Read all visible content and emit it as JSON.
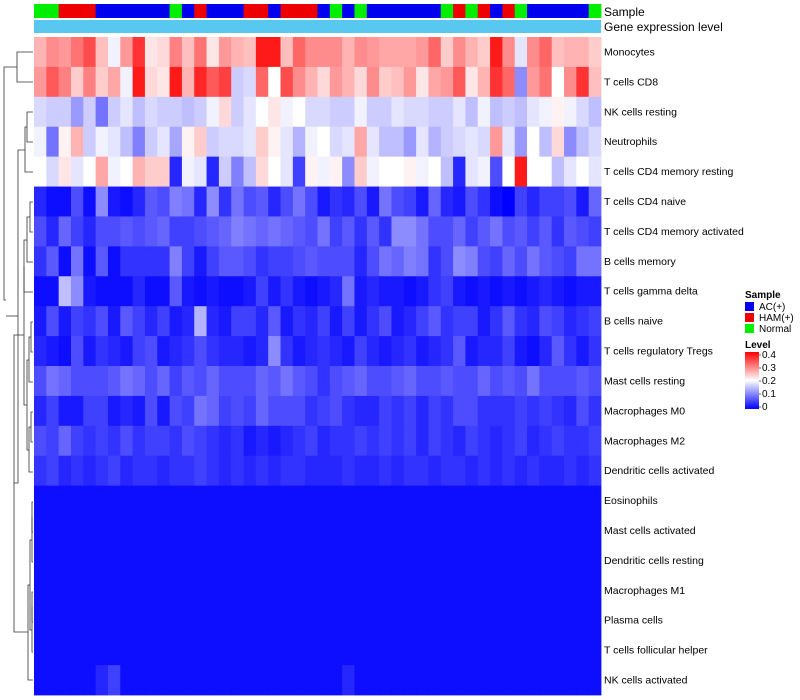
{
  "chart_data": {
    "type": "heatmap",
    "annotation_labels": [
      "Sample",
      "Gene expression level"
    ],
    "row_labels": [
      "Monocytes",
      "T cells CD8",
      "NK cells resting",
      "Neutrophils",
      "T cells CD4 memory resting",
      "T cells CD4 naive",
      "T cells CD4 memory activated",
      "B cells memory",
      "T cells gamma delta",
      "B cells naive",
      "T cells regulatory  Tregs",
      "Mast cells resting",
      "Macrophages M0",
      "Macrophages M2",
      "Dendritic cells activated",
      "Eosinophils",
      "Mast cells activated",
      "Dendritic cells resting",
      "Macrophages M1",
      "Plasma cells",
      "T cells follicular helper",
      "NK cells activated"
    ],
    "samples": [
      "N",
      "N",
      "H",
      "H",
      "H",
      "A",
      "A",
      "A",
      "A",
      "A",
      "A",
      "N",
      "A",
      "H",
      "A",
      "A",
      "A",
      "H",
      "H",
      "A",
      "H",
      "H",
      "H",
      "A",
      "N",
      "A",
      "N",
      "A",
      "A",
      "A",
      "A",
      "A",
      "A",
      "N",
      "H",
      "N",
      "H",
      "A",
      "H",
      "N",
      "A",
      "A",
      "A",
      "A",
      "A",
      "N"
    ],
    "sample_legend": {
      "title": "Sample",
      "items": [
        {
          "key": "A",
          "label": "AC(+)",
          "color": "#0000EE"
        },
        {
          "key": "H",
          "label": "HAM(+)",
          "color": "#EE0000"
        },
        {
          "key": "N",
          "label": "Normal",
          "color": "#00EE00"
        }
      ]
    },
    "level_legend": {
      "title": "Level",
      "ticks": [
        "0.4",
        "0.3",
        "0.2",
        "0.1",
        "0"
      ],
      "min": 0,
      "max": 0.4
    },
    "color_scale": {
      "low": "#0000FF",
      "mid": "#FFFFFF",
      "high": "#FF0000",
      "mid_value": 0.2
    },
    "values": [
      [
        0.26,
        0.29,
        0.28,
        0.31,
        0.34,
        0.25,
        0.19,
        0.28,
        0.36,
        0.22,
        0.23,
        0.3,
        0.25,
        0.31,
        0.22,
        0.28,
        0.26,
        0.25,
        0.38,
        0.38,
        0.25,
        0.32,
        0.29,
        0.29,
        0.29,
        0.26,
        0.29,
        0.28,
        0.27,
        0.27,
        0.27,
        0.28,
        0.32,
        0.24,
        0.29,
        0.26,
        0.24,
        0.38,
        0.29,
        0.18,
        0.29,
        0.32,
        0.25,
        0.26,
        0.26,
        0.24
      ],
      [
        0.28,
        0.33,
        0.3,
        0.24,
        0.3,
        0.24,
        0.27,
        0.19,
        0.38,
        0.23,
        0.22,
        0.38,
        0.26,
        0.37,
        0.33,
        0.35,
        0.16,
        0.17,
        0.32,
        0.2,
        0.34,
        0.29,
        0.26,
        0.23,
        0.28,
        0.26,
        0.23,
        0.29,
        0.24,
        0.25,
        0.28,
        0.22,
        0.27,
        0.28,
        0.33,
        0.22,
        0.26,
        0.36,
        0.32,
        0.11,
        0.28,
        0.31,
        0.2,
        0.29,
        0.36,
        0.25
      ],
      [
        0.17,
        0.16,
        0.16,
        0.12,
        0.16,
        0.09,
        0.16,
        0.18,
        0.15,
        0.17,
        0.16,
        0.16,
        0.15,
        0.16,
        0.19,
        0.23,
        0.16,
        0.18,
        0.2,
        0.22,
        0.19,
        0.2,
        0.17,
        0.17,
        0.16,
        0.16,
        0.19,
        0.16,
        0.16,
        0.18,
        0.17,
        0.17,
        0.16,
        0.16,
        0.18,
        0.15,
        0.19,
        0.15,
        0.16,
        0.15,
        0.18,
        0.19,
        0.21,
        0.19,
        0.17,
        0.15
      ],
      [
        0.19,
        0.09,
        0.21,
        0.26,
        0.16,
        0.19,
        0.18,
        0.15,
        0.1,
        0.16,
        0.18,
        0.13,
        0.21,
        0.24,
        0.16,
        0.17,
        0.17,
        0.18,
        0.24,
        0.21,
        0.18,
        0.14,
        0.19,
        0.2,
        0.17,
        0.18,
        0.27,
        0.18,
        0.15,
        0.15,
        0.12,
        0.18,
        0.14,
        0.16,
        0.17,
        0.18,
        0.17,
        0.28,
        0.18,
        0.12,
        0.2,
        0.15,
        0.23,
        0.11,
        0.15,
        0.17
      ],
      [
        0.2,
        0.17,
        0.22,
        0.18,
        0.2,
        0.27,
        0.19,
        0.2,
        0.26,
        0.24,
        0.24,
        0.03,
        0.19,
        0.18,
        0.03,
        0.16,
        0.1,
        0.15,
        0.23,
        0.2,
        0.18,
        0.05,
        0.21,
        0.19,
        0.21,
        0.11,
        0.24,
        0.19,
        0.2,
        0.2,
        0.21,
        0.19,
        0.2,
        0.15,
        0.03,
        0.18,
        0.19,
        0.06,
        0.2,
        0.38,
        0.2,
        0.2,
        0.15,
        0.18,
        0.2,
        0.18
      ],
      [
        0.03,
        0.01,
        0.01,
        0.06,
        0.01,
        0.11,
        0.02,
        0.01,
        0.03,
        0.07,
        0.06,
        0.1,
        0.09,
        0.03,
        0.11,
        0.04,
        0.09,
        0.06,
        0.07,
        0.03,
        0.06,
        0.09,
        0.06,
        0.02,
        0.04,
        0.03,
        0.06,
        0.02,
        0.09,
        0.06,
        0.05,
        0.02,
        0.08,
        0.03,
        0.02,
        0.06,
        0.04,
        0.01,
        0.0,
        0.05,
        0.03,
        0.05,
        0.05,
        0.06,
        0.02,
        0.08
      ],
      [
        0.06,
        0.03,
        0.08,
        0.05,
        0.03,
        0.06,
        0.06,
        0.07,
        0.06,
        0.07,
        0.08,
        0.05,
        0.05,
        0.06,
        0.07,
        0.08,
        0.1,
        0.09,
        0.08,
        0.09,
        0.08,
        0.07,
        0.06,
        0.09,
        0.05,
        0.07,
        0.04,
        0.07,
        0.04,
        0.11,
        0.11,
        0.09,
        0.06,
        0.06,
        0.08,
        0.05,
        0.07,
        0.09,
        0.06,
        0.07,
        0.05,
        0.07,
        0.04,
        0.07,
        0.06,
        0.05
      ],
      [
        0.04,
        0.07,
        0.01,
        0.09,
        0.01,
        0.07,
        0.01,
        0.04,
        0.04,
        0.04,
        0.04,
        0.1,
        0.05,
        0.02,
        0.05,
        0.07,
        0.07,
        0.06,
        0.04,
        0.05,
        0.05,
        0.06,
        0.07,
        0.06,
        0.06,
        0.06,
        0.03,
        0.06,
        0.09,
        0.08,
        0.1,
        0.09,
        0.04,
        0.06,
        0.11,
        0.1,
        0.06,
        0.05,
        0.08,
        0.06,
        0.09,
        0.07,
        0.06,
        0.05,
        0.09,
        0.09
      ],
      [
        0.01,
        0.01,
        0.15,
        0.11,
        0.02,
        0.01,
        0.01,
        0.01,
        0.03,
        0.01,
        0.01,
        0.07,
        0.02,
        0.01,
        0.02,
        0.01,
        0.01,
        0.02,
        0.05,
        0.02,
        0.04,
        0.02,
        0.01,
        0.02,
        0.03,
        0.09,
        0.02,
        0.03,
        0.02,
        0.02,
        0.01,
        0.02,
        0.04,
        0.05,
        0.02,
        0.01,
        0.02,
        0.01,
        0.02,
        0.01,
        0.02,
        0.03,
        0.02,
        0.01,
        0.02,
        0.02
      ],
      [
        0.02,
        0.06,
        0.02,
        0.05,
        0.04,
        0.06,
        0.02,
        0.07,
        0.05,
        0.03,
        0.05,
        0.02,
        0.03,
        0.14,
        0.03,
        0.02,
        0.05,
        0.05,
        0.03,
        0.07,
        0.02,
        0.04,
        0.03,
        0.05,
        0.02,
        0.05,
        0.02,
        0.04,
        0.06,
        0.02,
        0.03,
        0.05,
        0.07,
        0.04,
        0.05,
        0.05,
        0.02,
        0.04,
        0.07,
        0.04,
        0.03,
        0.06,
        0.05,
        0.03,
        0.04,
        0.05
      ],
      [
        0.03,
        0.02,
        0.01,
        0.06,
        0.02,
        0.04,
        0.03,
        0.02,
        0.05,
        0.06,
        0.02,
        0.03,
        0.04,
        0.06,
        0.04,
        0.03,
        0.03,
        0.02,
        0.03,
        0.11,
        0.04,
        0.02,
        0.03,
        0.04,
        0.03,
        0.02,
        0.05,
        0.03,
        0.02,
        0.03,
        0.04,
        0.02,
        0.03,
        0.04,
        0.07,
        0.02,
        0.03,
        0.03,
        0.05,
        0.02,
        0.01,
        0.03,
        0.07,
        0.04,
        0.02,
        0.04
      ],
      [
        0.06,
        0.09,
        0.08,
        0.06,
        0.06,
        0.06,
        0.07,
        0.09,
        0.08,
        0.06,
        0.08,
        0.05,
        0.07,
        0.06,
        0.08,
        0.06,
        0.06,
        0.06,
        0.08,
        0.07,
        0.09,
        0.07,
        0.06,
        0.04,
        0.06,
        0.07,
        0.08,
        0.06,
        0.06,
        0.07,
        0.08,
        0.06,
        0.06,
        0.07,
        0.06,
        0.06,
        0.08,
        0.06,
        0.07,
        0.06,
        0.09,
        0.06,
        0.06,
        0.06,
        0.07,
        0.06
      ],
      [
        0.03,
        0.05,
        0.02,
        0.02,
        0.05,
        0.05,
        0.02,
        0.03,
        0.02,
        0.06,
        0.02,
        0.06,
        0.05,
        0.09,
        0.08,
        0.05,
        0.06,
        0.05,
        0.08,
        0.06,
        0.06,
        0.06,
        0.04,
        0.05,
        0.06,
        0.04,
        0.03,
        0.03,
        0.05,
        0.04,
        0.05,
        0.03,
        0.05,
        0.04,
        0.06,
        0.06,
        0.04,
        0.04,
        0.04,
        0.05,
        0.04,
        0.05,
        0.04,
        0.03,
        0.06,
        0.04
      ],
      [
        0.06,
        0.05,
        0.08,
        0.05,
        0.04,
        0.05,
        0.04,
        0.06,
        0.04,
        0.05,
        0.05,
        0.04,
        0.06,
        0.05,
        0.04,
        0.03,
        0.04,
        0.02,
        0.03,
        0.02,
        0.03,
        0.04,
        0.05,
        0.03,
        0.04,
        0.04,
        0.05,
        0.04,
        0.05,
        0.04,
        0.05,
        0.03,
        0.05,
        0.04,
        0.03,
        0.05,
        0.04,
        0.03,
        0.04,
        0.05,
        0.03,
        0.04,
        0.05,
        0.04,
        0.04,
        0.05
      ],
      [
        0.04,
        0.05,
        0.03,
        0.04,
        0.03,
        0.04,
        0.05,
        0.03,
        0.04,
        0.04,
        0.03,
        0.04,
        0.04,
        0.05,
        0.04,
        0.03,
        0.04,
        0.03,
        0.04,
        0.03,
        0.04,
        0.04,
        0.03,
        0.03,
        0.03,
        0.04,
        0.03,
        0.03,
        0.04,
        0.03,
        0.04,
        0.04,
        0.03,
        0.04,
        0.04,
        0.03,
        0.04,
        0.03,
        0.04,
        0.03,
        0.04,
        0.03,
        0.03,
        0.04,
        0.03,
        0.04
      ],
      [
        0.01,
        0.01,
        0.01,
        0.01,
        0.01,
        0.01,
        0.01,
        0.01,
        0.01,
        0.01,
        0.01,
        0.01,
        0.01,
        0.01,
        0.01,
        0.01,
        0.01,
        0.01,
        0.01,
        0.01,
        0.01,
        0.01,
        0.01,
        0.01,
        0.01,
        0.01,
        0.01,
        0.01,
        0.01,
        0.01,
        0.01,
        0.01,
        0.01,
        0.01,
        0.01,
        0.01,
        0.01,
        0.01,
        0.01,
        0.01,
        0.01,
        0.01,
        0.01,
        0.01,
        0.01,
        0.01
      ],
      [
        0.01,
        0.01,
        0.01,
        0.01,
        0.01,
        0.01,
        0.01,
        0.01,
        0.01,
        0.01,
        0.01,
        0.01,
        0.01,
        0.01,
        0.01,
        0.01,
        0.01,
        0.01,
        0.01,
        0.01,
        0.01,
        0.01,
        0.01,
        0.01,
        0.01,
        0.01,
        0.01,
        0.01,
        0.01,
        0.01,
        0.01,
        0.01,
        0.01,
        0.01,
        0.01,
        0.01,
        0.01,
        0.01,
        0.01,
        0.01,
        0.01,
        0.01,
        0.01,
        0.01,
        0.01,
        0.01
      ],
      [
        0.01,
        0.01,
        0.01,
        0.01,
        0.01,
        0.01,
        0.01,
        0.01,
        0.01,
        0.01,
        0.01,
        0.01,
        0.01,
        0.01,
        0.01,
        0.01,
        0.01,
        0.01,
        0.01,
        0.01,
        0.01,
        0.01,
        0.01,
        0.01,
        0.01,
        0.01,
        0.01,
        0.01,
        0.01,
        0.01,
        0.01,
        0.01,
        0.01,
        0.01,
        0.01,
        0.01,
        0.01,
        0.01,
        0.01,
        0.01,
        0.01,
        0.01,
        0.01,
        0.01,
        0.01,
        0.01
      ],
      [
        0.01,
        0.01,
        0.01,
        0.01,
        0.01,
        0.01,
        0.01,
        0.01,
        0.01,
        0.01,
        0.01,
        0.01,
        0.01,
        0.01,
        0.01,
        0.01,
        0.01,
        0.01,
        0.01,
        0.01,
        0.01,
        0.01,
        0.01,
        0.01,
        0.01,
        0.01,
        0.01,
        0.01,
        0.01,
        0.01,
        0.01,
        0.01,
        0.01,
        0.01,
        0.01,
        0.01,
        0.01,
        0.01,
        0.01,
        0.01,
        0.01,
        0.01,
        0.01,
        0.01,
        0.01,
        0.01
      ],
      [
        0.01,
        0.01,
        0.01,
        0.01,
        0.01,
        0.01,
        0.01,
        0.01,
        0.01,
        0.01,
        0.01,
        0.01,
        0.01,
        0.01,
        0.01,
        0.01,
        0.01,
        0.01,
        0.01,
        0.01,
        0.01,
        0.01,
        0.01,
        0.01,
        0.01,
        0.01,
        0.01,
        0.01,
        0.01,
        0.01,
        0.01,
        0.01,
        0.01,
        0.01,
        0.01,
        0.01,
        0.01,
        0.01,
        0.01,
        0.01,
        0.01,
        0.01,
        0.01,
        0.01,
        0.01,
        0.01
      ],
      [
        0.01,
        0.01,
        0.01,
        0.01,
        0.01,
        0.01,
        0.01,
        0.01,
        0.01,
        0.01,
        0.01,
        0.01,
        0.01,
        0.01,
        0.01,
        0.01,
        0.01,
        0.01,
        0.01,
        0.01,
        0.01,
        0.01,
        0.01,
        0.01,
        0.01,
        0.01,
        0.01,
        0.01,
        0.01,
        0.01,
        0.01,
        0.01,
        0.01,
        0.01,
        0.01,
        0.01,
        0.01,
        0.01,
        0.01,
        0.01,
        0.01,
        0.01,
        0.01,
        0.01,
        0.01,
        0.01
      ],
      [
        0.01,
        0.01,
        0.01,
        0.01,
        0.01,
        0.03,
        0.05,
        0.01,
        0.01,
        0.01,
        0.01,
        0.01,
        0.01,
        0.01,
        0.01,
        0.01,
        0.01,
        0.01,
        0.01,
        0.01,
        0.01,
        0.01,
        0.01,
        0.01,
        0.01,
        0.03,
        0.01,
        0.01,
        0.01,
        0.01,
        0.01,
        0.01,
        0.01,
        0.01,
        0.01,
        0.01,
        0.01,
        0.01,
        0.01,
        0.01,
        0.01,
        0.01,
        0.01,
        0.01,
        0.01,
        0.01
      ]
    ]
  }
}
